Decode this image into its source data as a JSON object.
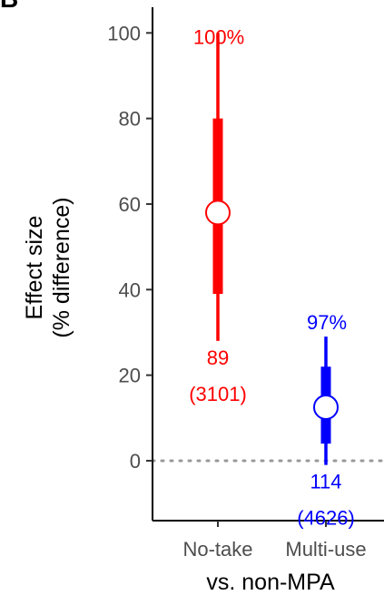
{
  "panel_label": "B",
  "chart_data": {
    "type": "point-range",
    "title": "",
    "xlabel": "vs. non-MPA",
    "ylabel": [
      "Effect size",
      "(% difference)"
    ],
    "ylim": [
      -14,
      106
    ],
    "y_ticks": [
      0,
      20,
      40,
      60,
      80,
      100
    ],
    "reference_line": {
      "y": 0,
      "style": "dotted",
      "color": "#999999"
    },
    "grid": false,
    "categories": [
      "No-take",
      "Multi-use"
    ],
    "series": [
      {
        "category": "No-take",
        "color": "#ff0000",
        "estimate": 58,
        "inner_interval": [
          39,
          80
        ],
        "outer_interval": [
          28,
          100
        ],
        "probability_label": "100%",
        "count_label": "89",
        "sample_label": "(3101)"
      },
      {
        "category": "Multi-use",
        "color": "#0000ff",
        "estimate": 12.5,
        "inner_interval": [
          4,
          22
        ],
        "outer_interval": [
          -1,
          29
        ],
        "probability_label": "97%",
        "count_label": "114",
        "sample_label": "(4626)"
      }
    ]
  }
}
